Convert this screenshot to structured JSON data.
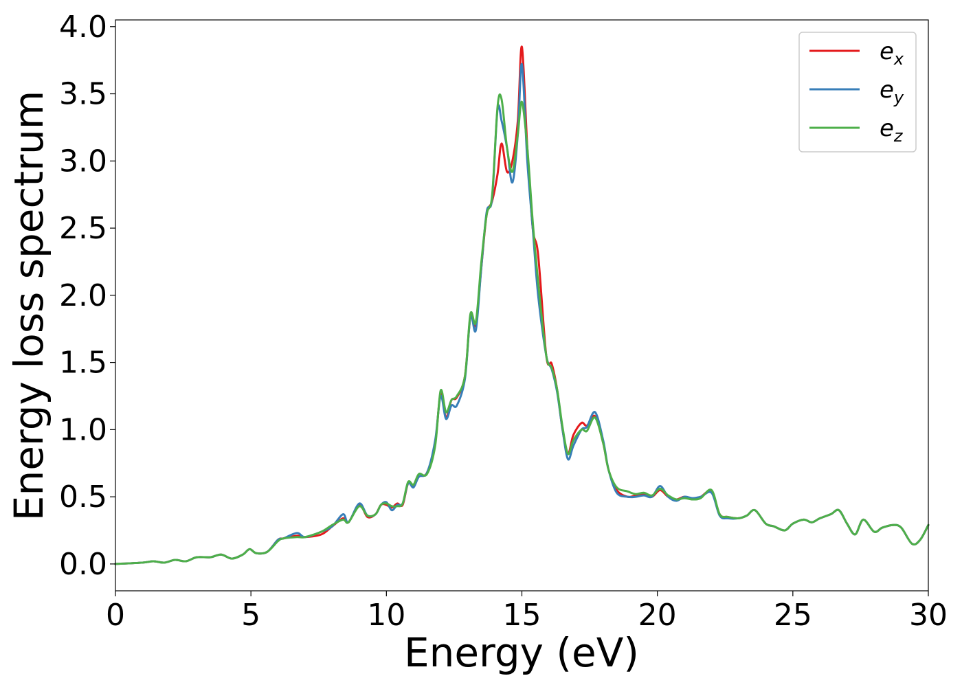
{
  "chart_data": {
    "type": "line",
    "title": "",
    "xlabel": "Energy (eV)",
    "ylabel": "Energy loss spectrum",
    "xlim": [
      0,
      30
    ],
    "ylim": [
      -0.2,
      4.05
    ],
    "xticks": [
      0,
      5,
      10,
      15,
      20,
      25,
      30
    ],
    "xtick_labels": [
      "0",
      "5",
      "10",
      "15",
      "20",
      "25",
      "30"
    ],
    "yticks": [
      0.0,
      0.5,
      1.0,
      1.5,
      2.0,
      2.5,
      3.0,
      3.5,
      4.0
    ],
    "ytick_labels": [
      "0.0",
      "0.5",
      "1.0",
      "1.5",
      "2.0",
      "2.5",
      "3.0",
      "3.5",
      "4.0"
    ],
    "grid": false,
    "legend_position": "top-right",
    "series": [
      {
        "name": "e",
        "subscript": "x",
        "color": "#e41a1c",
        "x": [
          0,
          1,
          1.4,
          1.8,
          2.2,
          2.6,
          3.0,
          3.5,
          3.9,
          4.3,
          4.7,
          4.95,
          5.2,
          5.6,
          6.0,
          6.2,
          6.7,
          7.0,
          7.6,
          8.0,
          8.4,
          8.6,
          9.0,
          9.3,
          9.6,
          9.8,
          10.0,
          10.2,
          10.4,
          10.6,
          10.8,
          11.0,
          11.2,
          11.5,
          11.8,
          12.0,
          12.2,
          12.4,
          12.6,
          12.9,
          13.1,
          13.3,
          13.5,
          13.7,
          13.9,
          14.1,
          14.25,
          14.45,
          14.65,
          14.85,
          15.0,
          15.2,
          15.4,
          15.6,
          15.9,
          16.1,
          16.3,
          16.5,
          16.7,
          16.9,
          17.2,
          17.4,
          17.7,
          18.0,
          18.2,
          18.5,
          18.9,
          19.2,
          19.5,
          19.8,
          20.1,
          20.4,
          20.7,
          21.0,
          21.3,
          21.6,
          22.0,
          22.3,
          22.6,
          23.0,
          23.3,
          23.6,
          24.0,
          24.3,
          24.7,
          25.0,
          25.4,
          25.7,
          26.0,
          26.4,
          26.7,
          27.0,
          27.3,
          27.6,
          28.0,
          28.3,
          28.7,
          29.0,
          29.4,
          29.7,
          30.0
        ],
        "values": [
          0.0,
          0.01,
          0.02,
          0.01,
          0.03,
          0.02,
          0.05,
          0.05,
          0.07,
          0.04,
          0.07,
          0.11,
          0.08,
          0.09,
          0.18,
          0.19,
          0.21,
          0.2,
          0.22,
          0.28,
          0.34,
          0.31,
          0.44,
          0.35,
          0.37,
          0.44,
          0.44,
          0.42,
          0.45,
          0.44,
          0.6,
          0.58,
          0.65,
          0.68,
          0.9,
          1.27,
          1.09,
          1.22,
          1.24,
          1.4,
          1.84,
          1.78,
          2.2,
          2.6,
          2.7,
          2.9,
          3.13,
          2.92,
          3.0,
          3.3,
          3.85,
          3.1,
          2.5,
          2.3,
          1.55,
          1.49,
          1.3,
          1.0,
          0.82,
          0.96,
          1.05,
          1.03,
          1.1,
          0.9,
          0.7,
          0.55,
          0.5,
          0.51,
          0.52,
          0.5,
          0.55,
          0.5,
          0.48,
          0.5,
          0.48,
          0.5,
          0.54,
          0.37,
          0.35,
          0.34,
          0.36,
          0.4,
          0.3,
          0.28,
          0.25,
          0.3,
          0.33,
          0.31,
          0.34,
          0.37,
          0.4,
          0.3,
          0.22,
          0.33,
          0.24,
          0.27,
          0.29,
          0.27,
          0.15,
          0.18,
          0.29
        ]
      },
      {
        "name": "e",
        "subscript": "y",
        "color": "#377eb8",
        "x": [
          0,
          1,
          1.4,
          1.8,
          2.2,
          2.6,
          3.0,
          3.5,
          3.9,
          4.3,
          4.7,
          4.95,
          5.2,
          5.6,
          6.0,
          6.2,
          6.7,
          7.0,
          7.6,
          8.0,
          8.4,
          8.6,
          9.0,
          9.3,
          9.6,
          9.8,
          10.0,
          10.2,
          10.4,
          10.6,
          10.8,
          11.0,
          11.2,
          11.5,
          11.8,
          12.0,
          12.2,
          12.4,
          12.6,
          12.9,
          13.1,
          13.3,
          13.5,
          13.7,
          13.9,
          14.1,
          14.25,
          14.45,
          14.65,
          14.85,
          15.0,
          15.2,
          15.4,
          15.6,
          15.9,
          16.1,
          16.3,
          16.5,
          16.7,
          16.9,
          17.2,
          17.4,
          17.7,
          18.0,
          18.2,
          18.5,
          18.9,
          19.2,
          19.5,
          19.8,
          20.1,
          20.4,
          20.7,
          21.0,
          21.3,
          21.6,
          22.0,
          22.3,
          22.6,
          23.0,
          23.3,
          23.6,
          24.0,
          24.3,
          24.7,
          25.0,
          25.4,
          25.7,
          26.0,
          26.4,
          26.7,
          27.0,
          27.3,
          27.6,
          28.0,
          28.3,
          28.7,
          29.0,
          29.4,
          29.7,
          30.0
        ],
        "values": [
          0.0,
          0.01,
          0.02,
          0.01,
          0.03,
          0.02,
          0.05,
          0.05,
          0.07,
          0.04,
          0.07,
          0.11,
          0.08,
          0.09,
          0.18,
          0.19,
          0.23,
          0.2,
          0.24,
          0.28,
          0.37,
          0.31,
          0.45,
          0.36,
          0.37,
          0.44,
          0.46,
          0.4,
          0.44,
          0.45,
          0.6,
          0.57,
          0.65,
          0.68,
          0.92,
          1.25,
          1.08,
          1.18,
          1.18,
          1.38,
          1.84,
          1.74,
          2.2,
          2.62,
          2.72,
          3.38,
          3.3,
          3.1,
          2.84,
          3.2,
          3.72,
          3.0,
          2.5,
          2.0,
          1.55,
          1.45,
          1.28,
          1.0,
          0.78,
          0.88,
          1.0,
          1.02,
          1.13,
          0.92,
          0.7,
          0.53,
          0.5,
          0.5,
          0.51,
          0.5,
          0.58,
          0.5,
          0.47,
          0.5,
          0.49,
          0.5,
          0.53,
          0.36,
          0.34,
          0.34,
          0.36,
          0.4,
          0.3,
          0.28,
          0.25,
          0.3,
          0.33,
          0.31,
          0.34,
          0.37,
          0.4,
          0.3,
          0.22,
          0.33,
          0.24,
          0.27,
          0.29,
          0.27,
          0.15,
          0.18,
          0.29
        ]
      },
      {
        "name": "e",
        "subscript": "z",
        "color": "#4daf4a",
        "x": [
          0,
          1,
          1.4,
          1.8,
          2.2,
          2.6,
          3.0,
          3.5,
          3.9,
          4.3,
          4.7,
          4.95,
          5.2,
          5.6,
          6.0,
          6.2,
          6.7,
          7.0,
          7.6,
          8.0,
          8.4,
          8.6,
          9.0,
          9.3,
          9.6,
          9.8,
          10.0,
          10.2,
          10.4,
          10.6,
          10.8,
          11.0,
          11.2,
          11.5,
          11.8,
          12.0,
          12.2,
          12.4,
          12.6,
          12.9,
          13.1,
          13.3,
          13.5,
          13.7,
          13.9,
          14.1,
          14.25,
          14.45,
          14.65,
          14.85,
          15.0,
          15.2,
          15.4,
          15.6,
          15.9,
          16.1,
          16.3,
          16.5,
          16.7,
          16.9,
          17.2,
          17.4,
          17.7,
          18.0,
          18.2,
          18.5,
          18.9,
          19.2,
          19.5,
          19.8,
          20.1,
          20.4,
          20.7,
          21.0,
          21.3,
          21.6,
          22.0,
          22.3,
          22.6,
          23.0,
          23.3,
          23.6,
          24.0,
          24.3,
          24.7,
          25.0,
          25.4,
          25.7,
          26.0,
          26.4,
          26.7,
          27.0,
          27.3,
          27.6,
          28.0,
          28.3,
          28.7,
          29.0,
          29.4,
          29.7,
          30.0
        ],
        "values": [
          0.0,
          0.01,
          0.02,
          0.01,
          0.03,
          0.02,
          0.05,
          0.05,
          0.07,
          0.04,
          0.07,
          0.11,
          0.08,
          0.09,
          0.17,
          0.19,
          0.2,
          0.2,
          0.24,
          0.29,
          0.33,
          0.31,
          0.43,
          0.36,
          0.37,
          0.44,
          0.45,
          0.43,
          0.43,
          0.45,
          0.61,
          0.59,
          0.67,
          0.67,
          0.88,
          1.29,
          1.13,
          1.22,
          1.25,
          1.4,
          1.86,
          1.8,
          2.24,
          2.6,
          2.74,
          3.4,
          3.46,
          3.1,
          2.92,
          3.2,
          3.44,
          3.1,
          2.55,
          2.1,
          1.55,
          1.46,
          1.3,
          1.02,
          0.82,
          0.92,
          1.0,
          0.99,
          1.09,
          0.9,
          0.7,
          0.57,
          0.54,
          0.52,
          0.53,
          0.51,
          0.56,
          0.51,
          0.48,
          0.49,
          0.48,
          0.49,
          0.55,
          0.37,
          0.35,
          0.34,
          0.36,
          0.4,
          0.3,
          0.28,
          0.25,
          0.3,
          0.33,
          0.31,
          0.34,
          0.37,
          0.4,
          0.3,
          0.22,
          0.33,
          0.24,
          0.27,
          0.29,
          0.27,
          0.15,
          0.18,
          0.29
        ]
      }
    ]
  }
}
